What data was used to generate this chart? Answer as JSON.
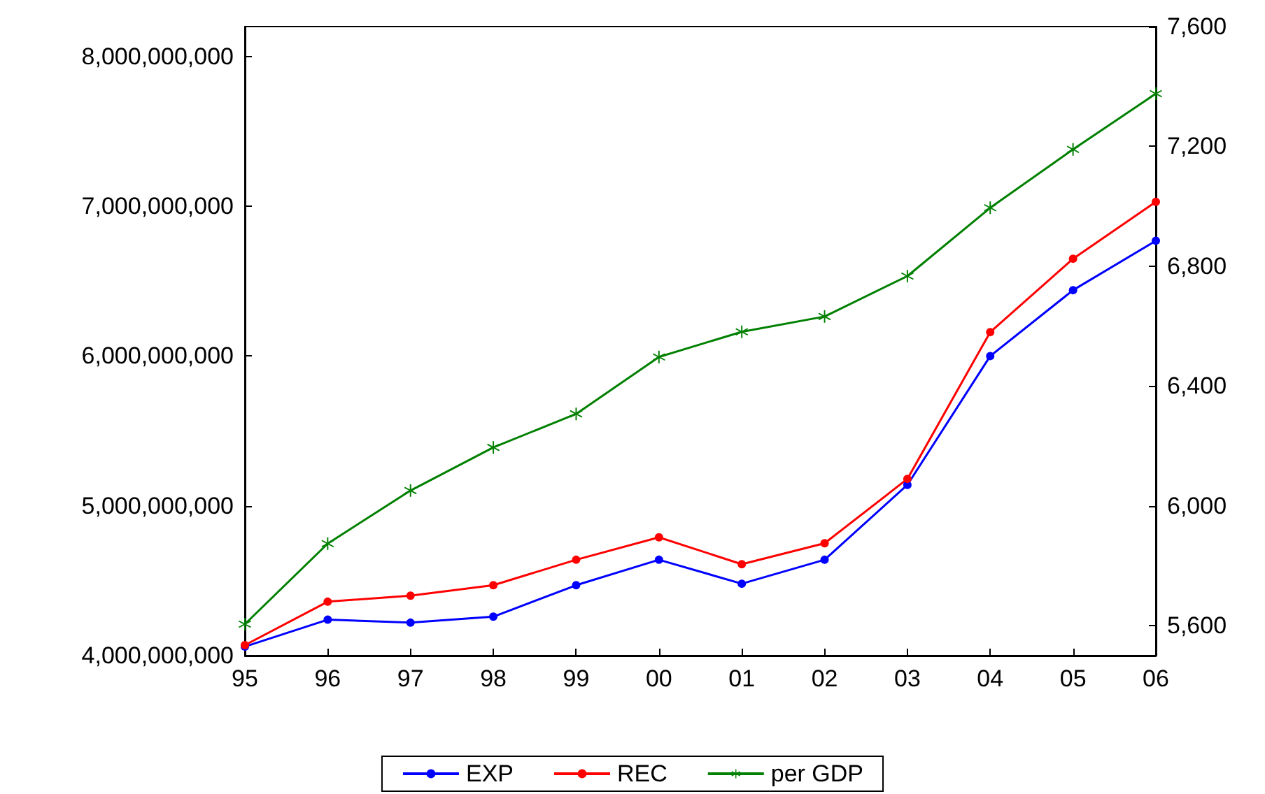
{
  "chart_data": {
    "type": "line",
    "categories": [
      "95",
      "96",
      "97",
      "98",
      "99",
      "00",
      "01",
      "02",
      "03",
      "04",
      "05",
      "06"
    ],
    "series": [
      {
        "name": "EXP",
        "color": "#0000ff",
        "marker": "circle",
        "values": [
          4060000000,
          4240000000,
          4220000000,
          4260000000,
          4470000000,
          4640000000,
          4480000000,
          4640000000,
          5140000000,
          6000000000,
          6440000000,
          6770000000
        ]
      },
      {
        "name": "REC",
        "color": "#ff0000",
        "marker": "circle",
        "values": [
          4070000000,
          4360000000,
          4400000000,
          4470000000,
          4640000000,
          4790000000,
          4610000000,
          4750000000,
          5180000000,
          6160000000,
          6650000000,
          7030000000
        ]
      },
      {
        "name": "per GDP",
        "color": "#008000",
        "marker": "star",
        "axis": "y2",
        "values": [
          5605,
          5874,
          6051,
          6195,
          6307,
          6497,
          6581,
          6632,
          6767,
          6995,
          7190,
          7376
        ]
      }
    ],
    "ylim": [
      4000000000,
      8200000000
    ],
    "yticks": [
      {
        "value": 4000000000,
        "label": "4,000,000,000"
      },
      {
        "value": 5000000000,
        "label": "5,000,000,000"
      },
      {
        "value": 6000000000,
        "label": "6,000,000,000"
      },
      {
        "value": 7000000000,
        "label": "7,000,000,000"
      },
      {
        "value": 8000000000,
        "label": "8,000,000,000"
      }
    ],
    "y2lim": [
      5500,
      7600
    ],
    "y2ticks": [
      {
        "value": 5600,
        "label": "5,600"
      },
      {
        "value": 6000,
        "label": "6,000"
      },
      {
        "value": 6400,
        "label": "6,400"
      },
      {
        "value": 6800,
        "label": "6,800"
      },
      {
        "value": 7200,
        "label": "7,200"
      },
      {
        "value": 7600,
        "label": "7,600"
      }
    ],
    "grid": false,
    "legend": "bottom",
    "line_style": "solid"
  }
}
